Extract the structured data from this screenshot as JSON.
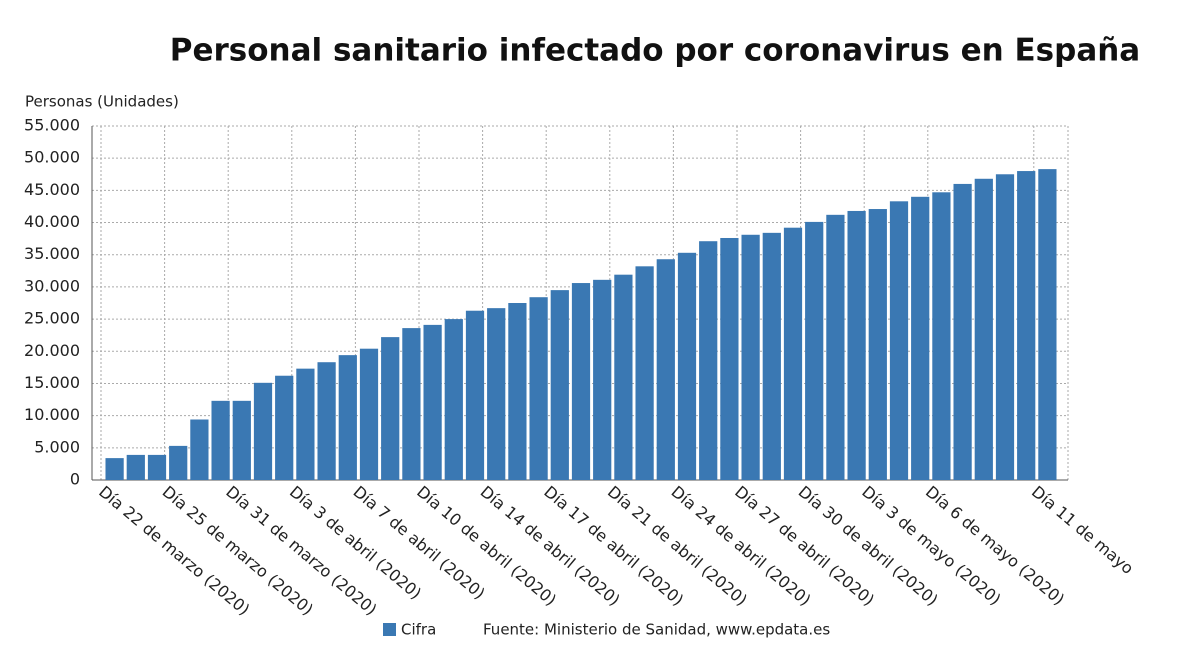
{
  "chart_data": {
    "type": "bar",
    "title": "Personal sanitario infectado por coronavirus en España",
    "y_label": "Personas (Unidades)",
    "source": "Fuente: Ministerio de Sanidad, www.epdata.es",
    "categories": [
      "Día 22 de marzo (2020)",
      null,
      null,
      "Día 25 de marzo (2020)",
      null,
      null,
      "Día 31 de marzo (2020)",
      null,
      null,
      "Día 3 de abril (2020)",
      null,
      null,
      "Día 7 de abril (2020)",
      null,
      null,
      "Día 10 de abril (2020)",
      null,
      null,
      "Día 14 de abril (2020)",
      null,
      null,
      "Día 17 de abril (2020)",
      null,
      null,
      "Día 21 de abril (2020)",
      null,
      null,
      "Día 24 de abril (2020)",
      null,
      null,
      "Día 27 de abril (2020)",
      null,
      null,
      "Día 30 de abril (2020)",
      null,
      null,
      "Día 3 de mayo (2020)",
      null,
      null,
      "Día 6 de mayo (2020)",
      null,
      null,
      null,
      null,
      "Día 11 de mayo"
    ],
    "series": [
      {
        "name": "Cifra",
        "color": "#3a78b3",
        "values": [
          3400,
          3900,
          3900,
          5300,
          9400,
          12300,
          12300,
          15100,
          16200,
          17300,
          18300,
          19400,
          20400,
          22200,
          23600,
          24100,
          25000,
          26300,
          26700,
          27500,
          28400,
          29500,
          30600,
          31100,
          31900,
          33200,
          34300,
          35300,
          37100,
          37600,
          38100,
          38400,
          39200,
          40100,
          41200,
          41800,
          42100,
          43300,
          44000,
          44700,
          46000,
          46800,
          47500,
          48000,
          48300
        ]
      }
    ],
    "ylim": [
      0,
      55000
    ],
    "yticks": [
      0,
      {
        "value": 5000,
        "label": "5.000"
      },
      {
        "value": 10000,
        "label": "10.000"
      },
      {
        "value": 15000,
        "label": "15.000"
      },
      {
        "value": 20000,
        "label": "20.000"
      },
      {
        "value": 25000,
        "label": "25.000"
      },
      {
        "value": 30000,
        "label": "30.000"
      },
      {
        "value": 35000,
        "label": "35.000"
      },
      {
        "value": 40000,
        "label": "40.000"
      },
      {
        "value": 45000,
        "label": "45.000"
      },
      {
        "value": 50000,
        "label": "50.000"
      },
      {
        "value": 55000,
        "label": "55.000"
      }
    ],
    "grid": true
  }
}
